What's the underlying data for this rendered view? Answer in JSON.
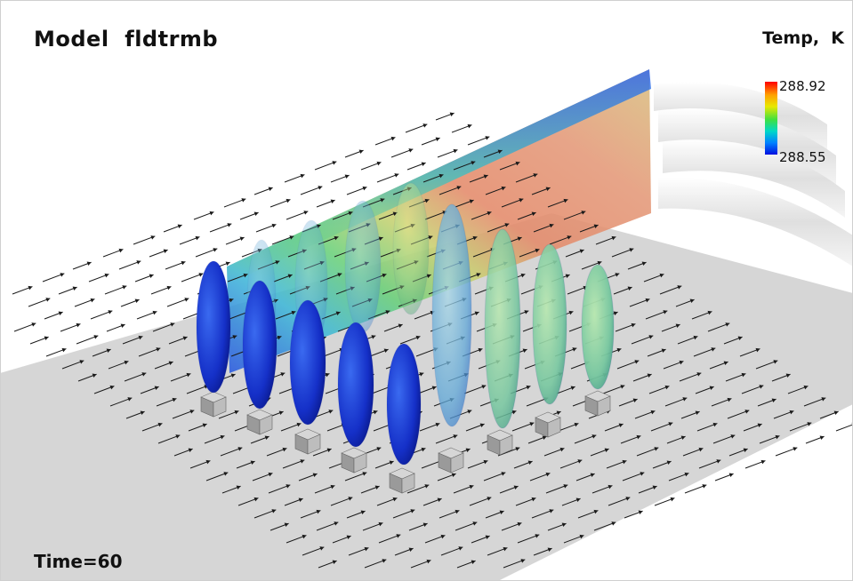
{
  "title": "Model  fldtrmb",
  "legend": {
    "title": "Temp,  K",
    "max_label": "288.92",
    "min_label": "288.55",
    "colors": [
      "#ff0000",
      "#ffa000",
      "#e8e800",
      "#40e040",
      "#00d8c8",
      "#0080ff",
      "#0010e0"
    ]
  },
  "time_label": "Time=60",
  "colors": {
    "ground": "#d0d0d0",
    "arrow": "#1a1a1a",
    "plume_cold": "#1a3ad8",
    "plume_warm": "#8ad28a",
    "block": "#a9a9a9"
  }
}
